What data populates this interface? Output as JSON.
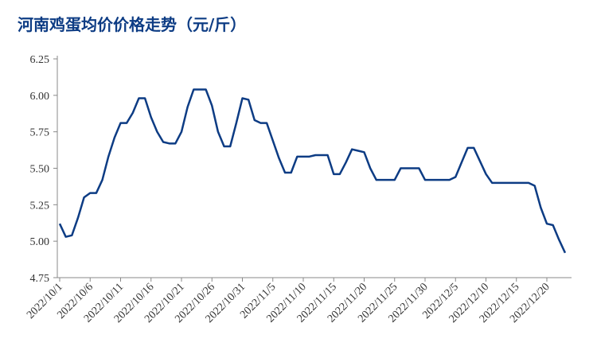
{
  "chart_data": {
    "type": "line",
    "title": "河南鸡蛋均价价格走势（元/斤）",
    "categories": [
      "2022/10/1",
      null,
      null,
      null,
      null,
      "2022/10/6",
      null,
      null,
      null,
      null,
      "2022/10/11",
      null,
      null,
      null,
      null,
      "2022/10/16",
      null,
      null,
      null,
      null,
      "2022/10/21",
      null,
      null,
      null,
      null,
      "2022/10/26",
      null,
      null,
      null,
      null,
      "2022/10/31",
      null,
      null,
      null,
      null,
      "2022/11/5",
      null,
      null,
      null,
      null,
      "2022/11/10",
      null,
      null,
      null,
      null,
      "2022/11/15",
      null,
      null,
      null,
      null,
      "2022/11/20",
      null,
      null,
      null,
      null,
      "2022/11/25",
      null,
      null,
      null,
      null,
      "2022/11/30",
      null,
      null,
      null,
      null,
      "2022/12/5",
      null,
      null,
      null,
      null,
      "2022/12/10",
      null,
      null,
      null,
      null,
      "2022/12/15",
      null,
      null,
      null,
      null,
      "2022/12/20",
      null,
      null,
      null
    ],
    "series": [
      {
        "color": "#0d3c84",
        "values": [
          5.12,
          5.03,
          5.04,
          5.16,
          5.3,
          5.33,
          5.33,
          5.42,
          5.58,
          5.71,
          5.81,
          5.81,
          5.88,
          5.98,
          5.98,
          5.85,
          5.75,
          5.68,
          5.67,
          5.67,
          5.75,
          5.92,
          6.04,
          6.04,
          6.04,
          5.93,
          5.75,
          5.65,
          5.65,
          5.81,
          5.98,
          5.97,
          5.83,
          5.81,
          5.81,
          5.69,
          5.57,
          5.47,
          5.47,
          5.58,
          5.58,
          5.58,
          5.59,
          5.59,
          5.59,
          5.46,
          5.46,
          5.54,
          5.63,
          5.62,
          5.61,
          5.5,
          5.42,
          5.42,
          5.42,
          5.42,
          5.5,
          5.5,
          5.5,
          5.5,
          5.42,
          5.42,
          5.42,
          5.42,
          5.42,
          5.44,
          5.54,
          5.64,
          5.64,
          5.55,
          5.46,
          5.4,
          5.4,
          5.4,
          5.4,
          5.4,
          5.4,
          5.4,
          5.38,
          5.23,
          5.12,
          5.11,
          5.01,
          4.92
        ]
      }
    ],
    "ylim": [
      4.75,
      6.25
    ],
    "yticks": [
      {
        "value": 4.75,
        "label": "4.75"
      },
      {
        "value": 5,
        "label": "5.00"
      },
      {
        "value": 5.25,
        "label": "5.25"
      },
      {
        "value": 5.5,
        "label": "5.50"
      },
      {
        "value": 5.75,
        "label": "5.75"
      },
      {
        "value": 6,
        "label": "6.00"
      },
      {
        "value": 6.25,
        "label": "6.25"
      }
    ]
  }
}
